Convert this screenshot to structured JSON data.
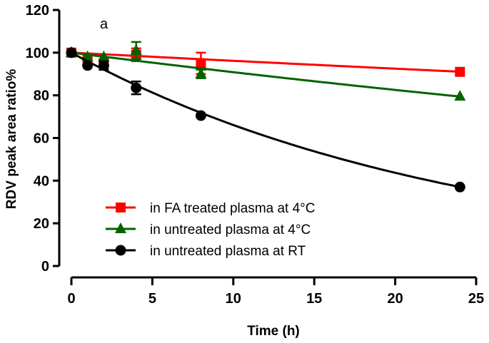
{
  "chart_data": {
    "type": "line",
    "title": "",
    "annotation": "a",
    "xlabel": "Time (h)",
    "ylabel": "RDV peak area ratio%",
    "xlim": [
      0,
      25
    ],
    "ylim": [
      0,
      120
    ],
    "xticks": [
      "0",
      "5",
      "10",
      "15",
      "20",
      "25"
    ],
    "yticks": [
      "0",
      "20",
      "40",
      "60",
      "80",
      "100",
      "120"
    ],
    "grid": false,
    "legend_position": "bottom-left",
    "series": [
      {
        "name": "in FA treated plasma at 4°C",
        "color": "#ff0000",
        "marker": "square",
        "x": [
          0,
          1,
          2,
          4,
          8,
          24
        ],
        "y": [
          100,
          97,
          95,
          99,
          95,
          91
        ],
        "err": [
          0,
          1,
          2,
          3,
          5,
          1
        ],
        "fit_rate": 0.0039
      },
      {
        "name": "in untreated plasma at 4°C",
        "color": "#006400",
        "marker": "triangle",
        "x": [
          0,
          1,
          2,
          4,
          8,
          24
        ],
        "y": [
          100,
          98,
          98,
          101,
          90,
          79.5
        ],
        "err": [
          0,
          1,
          1,
          4,
          2,
          1
        ],
        "fit_rate": 0.0096
      },
      {
        "name": "in untreated plasma at RT",
        "color": "#000000",
        "marker": "circle",
        "x": [
          0,
          1,
          2,
          4,
          8,
          24
        ],
        "y": [
          100,
          94,
          94,
          83.5,
          70.5,
          37
        ],
        "err": [
          0,
          1,
          2,
          3,
          1,
          1
        ],
        "fit_rate": 0.0414
      }
    ]
  }
}
